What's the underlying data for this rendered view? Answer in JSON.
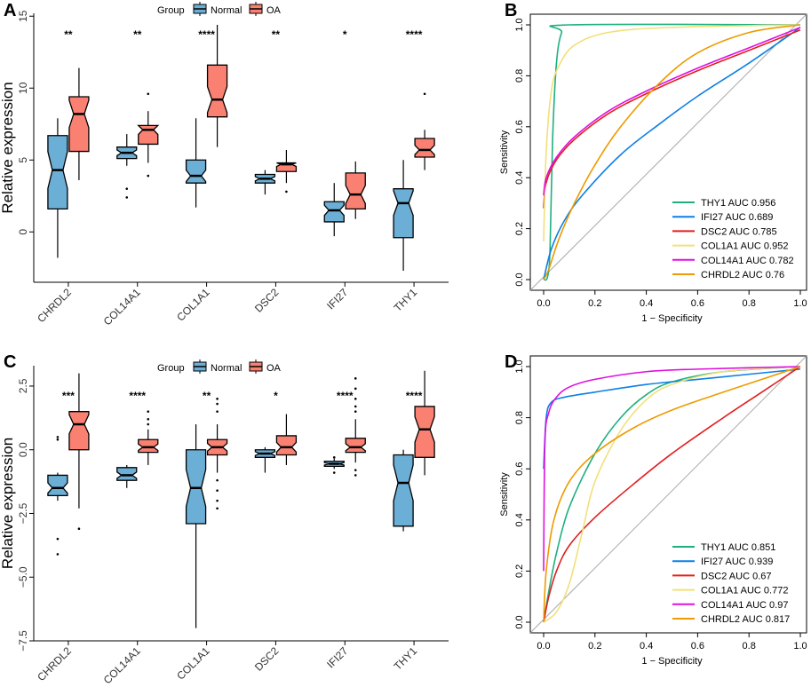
{
  "chart_data": [
    {
      "id": "A",
      "type": "box",
      "panel_label": "A",
      "ylabel": "Relative expression",
      "ylim": [
        -3.5,
        15.2
      ],
      "yticks": [
        0,
        5,
        10,
        15
      ],
      "legend": {
        "title": "Group",
        "entries": [
          "Normal",
          "OA"
        ]
      },
      "categories": [
        "CHRDL2",
        "COL14A1",
        "COL1A1",
        "DSC2",
        "IFI27",
        "THY1"
      ],
      "significance": [
        "**",
        "**",
        "****",
        "**",
        "*",
        "****"
      ],
      "colors": {
        "Normal": "#6BAED6",
        "OA": "#FA8072"
      },
      "series": [
        {
          "name": "Normal",
          "boxes": [
            {
              "min": -1.8,
              "q1": 1.6,
              "median": 4.3,
              "q3": 6.7,
              "max": 7.9,
              "outliers": []
            },
            {
              "min": 4.6,
              "q1": 5.1,
              "median": 5.5,
              "q3": 5.9,
              "max": 6.8,
              "outliers": [
                3.0,
                2.4
              ]
            },
            {
              "min": 1.7,
              "q1": 3.4,
              "median": 3.9,
              "q3": 5.0,
              "max": 7.9,
              "outliers": []
            },
            {
              "min": 2.6,
              "q1": 3.4,
              "median": 3.7,
              "q3": 4.0,
              "max": 4.3,
              "outliers": []
            },
            {
              "min": -0.3,
              "q1": 0.7,
              "median": 1.5,
              "q3": 2.1,
              "max": 3.4,
              "outliers": []
            },
            {
              "min": -2.7,
              "q1": -0.4,
              "median": 2.0,
              "q3": 3.0,
              "max": 5.0,
              "outliers": []
            }
          ]
        },
        {
          "name": "OA",
          "boxes": [
            {
              "min": 3.6,
              "q1": 5.6,
              "median": 8.2,
              "q3": 9.4,
              "max": 11.4,
              "outliers": []
            },
            {
              "min": 4.8,
              "q1": 6.1,
              "median": 7.1,
              "q3": 7.4,
              "max": 8.4,
              "outliers": [
                9.6,
                3.9
              ]
            },
            {
              "min": 5.9,
              "q1": 8.0,
              "median": 9.2,
              "q3": 11.6,
              "max": 14.4,
              "outliers": []
            },
            {
              "min": 3.4,
              "q1": 4.2,
              "median": 4.7,
              "q3": 4.8,
              "max": 5.7,
              "outliers": [
                2.8
              ]
            },
            {
              "min": 0.9,
              "q1": 1.6,
              "median": 2.6,
              "q3": 4.1,
              "max": 4.9,
              "outliers": []
            },
            {
              "min": 4.3,
              "q1": 5.2,
              "median": 5.7,
              "q3": 6.5,
              "max": 7.1,
              "outliers": [
                9.6
              ]
            }
          ]
        }
      ]
    },
    {
      "id": "B",
      "type": "line",
      "panel_label": "B",
      "xlabel": "1 − Specificity",
      "ylabel": "Sensitivity",
      "xlim": [
        0,
        1
      ],
      "ylim": [
        0,
        1
      ],
      "xticks": [
        "0.0",
        "0.2",
        "0.4",
        "0.6",
        "0.8",
        "1.0"
      ],
      "yticks": [
        "0.0",
        "0.2",
        "0.4",
        "0.6",
        "0.8",
        "1.0"
      ],
      "series": [
        {
          "name": "THY1 AUC 0.956",
          "color": "#1DB07F",
          "points": [
            [
              0,
              0
            ],
            [
              0.015,
              0.01
            ],
            [
              0.025,
              0.12
            ],
            [
              0.035,
              0.55
            ],
            [
              0.05,
              0.85
            ],
            [
              0.07,
              0.97
            ],
            [
              0.1,
              1.0
            ],
            [
              1,
              1
            ]
          ]
        },
        {
          "name": "IFI27 AUC 0.689",
          "color": "#0D7FE6",
          "points": [
            [
              0,
              0
            ],
            [
              0.03,
              0.12
            ],
            [
              0.08,
              0.23
            ],
            [
              0.15,
              0.33
            ],
            [
              0.3,
              0.49
            ],
            [
              0.45,
              0.61
            ],
            [
              0.6,
              0.72
            ],
            [
              0.8,
              0.85
            ],
            [
              1,
              0.99
            ]
          ]
        },
        {
          "name": "DSC2 AUC 0.785",
          "color": "#E01F1F",
          "points": [
            [
              0,
              0.28
            ],
            [
              0.01,
              0.38
            ],
            [
              0.05,
              0.47
            ],
            [
              0.12,
              0.55
            ],
            [
              0.25,
              0.65
            ],
            [
              0.4,
              0.73
            ],
            [
              0.6,
              0.82
            ],
            [
              0.8,
              0.9
            ],
            [
              1,
              0.98
            ]
          ]
        },
        {
          "name": "COL1A1 AUC 0.952",
          "color": "#F2E07A",
          "points": [
            [
              0,
              0.15
            ],
            [
              0.01,
              0.5
            ],
            [
              0.03,
              0.74
            ],
            [
              0.06,
              0.84
            ],
            [
              0.12,
              0.92
            ],
            [
              0.25,
              0.97
            ],
            [
              0.5,
              0.99
            ],
            [
              1,
              1
            ]
          ]
        },
        {
          "name": "COL14A1 AUC 0.782",
          "color": "#E010E0",
          "points": [
            [
              0,
              0.33
            ],
            [
              0.01,
              0.4
            ],
            [
              0.05,
              0.48
            ],
            [
              0.12,
              0.56
            ],
            [
              0.25,
              0.66
            ],
            [
              0.4,
              0.74
            ],
            [
              0.6,
              0.83
            ],
            [
              0.8,
              0.91
            ],
            [
              1,
              0.99
            ]
          ]
        },
        {
          "name": "CHRDL2 AUC 0.76",
          "color": "#EE9A00",
          "points": [
            [
              0,
              0
            ],
            [
              0.02,
              0.04
            ],
            [
              0.06,
              0.16
            ],
            [
              0.12,
              0.3
            ],
            [
              0.2,
              0.45
            ],
            [
              0.3,
              0.6
            ],
            [
              0.45,
              0.77
            ],
            [
              0.6,
              0.89
            ],
            [
              0.8,
              0.97
            ],
            [
              1,
              1
            ]
          ]
        }
      ]
    },
    {
      "id": "C",
      "type": "box",
      "panel_label": "C",
      "ylabel": "Relative expression",
      "ylim": [
        -7.5,
        3.3
      ],
      "yticks": [
        2.5,
        0.0,
        -2.5,
        -5.0,
        -7.5
      ],
      "ytick_labels": [
        "2.5",
        "0.0",
        "−2.5",
        "−5.0",
        "−7.5"
      ],
      "legend": {
        "title": "Group",
        "entries": [
          "Normal",
          "OA"
        ]
      },
      "categories": [
        "CHRDL2",
        "COL14A1",
        "COL1A1",
        "DSC2",
        "IFI27",
        "THY1"
      ],
      "significance": [
        "***",
        "****",
        "**",
        "*",
        "****",
        "****"
      ],
      "colors": {
        "Normal": "#6BAED6",
        "OA": "#FA8072"
      },
      "series": [
        {
          "name": "Normal",
          "boxes": [
            {
              "min": -2.0,
              "q1": -1.8,
              "median": -1.5,
              "q3": -1.0,
              "max": -0.9,
              "outliers": [
                0.5,
                0.4,
                -3.5,
                -4.1
              ]
            },
            {
              "min": -1.5,
              "q1": -1.2,
              "median": -1.0,
              "q3": -0.7,
              "max": -0.6,
              "outliers": []
            },
            {
              "min": -7.0,
              "q1": -2.9,
              "median": -1.5,
              "q3": 0.0,
              "max": 1.0,
              "outliers": []
            },
            {
              "min": -0.9,
              "q1": -0.3,
              "median": -0.15,
              "q3": 0.0,
              "max": 0.1,
              "outliers": []
            },
            {
              "min": -0.75,
              "q1": -0.65,
              "median": -0.55,
              "q3": -0.45,
              "max": -0.35,
              "outliers": [
                -0.9,
                -0.3
              ]
            },
            {
              "min": -3.2,
              "q1": -3.0,
              "median": -1.3,
              "q3": -0.2,
              "max": 0.0,
              "outliers": []
            }
          ]
        },
        {
          "name": "OA",
          "boxes": [
            {
              "min": -2.3,
              "q1": 0.0,
              "median": 1.0,
              "q3": 1.5,
              "max": 3.0,
              "outliers": [
                -3.1
              ]
            },
            {
              "min": -0.6,
              "q1": -0.1,
              "median": 0.1,
              "q3": 0.4,
              "max": 0.8,
              "outliers": [
                1.5,
                1.2,
                1.0
              ]
            },
            {
              "min": -0.9,
              "q1": -0.2,
              "median": 0.1,
              "q3": 0.4,
              "max": 1.0,
              "outliers": [
                2.0,
                1.8,
                1.5,
                -1.2,
                -1.6,
                -2.0,
                -2.3
              ]
            },
            {
              "min": -0.6,
              "q1": -0.2,
              "median": 0.1,
              "q3": 0.55,
              "max": 1.4,
              "outliers": []
            },
            {
              "min": -0.5,
              "q1": -0.1,
              "median": 0.1,
              "q3": 0.45,
              "max": 1.2,
              "outliers": [
                2.8,
                2.4,
                2.0,
                1.7,
                1.5,
                -0.8,
                -1.0
              ]
            },
            {
              "min": -1.0,
              "q1": -0.3,
              "median": 0.8,
              "q3": 1.7,
              "max": 3.1,
              "outliers": []
            }
          ]
        }
      ]
    },
    {
      "id": "D",
      "type": "line",
      "panel_label": "D",
      "xlabel": "1 − Specificity",
      "ylabel": "Sensitivity",
      "xlim": [
        0,
        1
      ],
      "ylim": [
        0,
        1
      ],
      "xticks": [
        "0.0",
        "0.2",
        "0.4",
        "0.6",
        "0.8",
        "1.0"
      ],
      "yticks": [
        "0.0",
        "0.2",
        "0.4",
        "0.6",
        "0.8",
        "1.0"
      ],
      "series": [
        {
          "name": "THY1 AUC 0.851",
          "color": "#1DB07F",
          "points": [
            [
              0,
              0
            ],
            [
              0.02,
              0.12
            ],
            [
              0.05,
              0.27
            ],
            [
              0.1,
              0.45
            ],
            [
              0.2,
              0.66
            ],
            [
              0.3,
              0.8
            ],
            [
              0.4,
              0.89
            ],
            [
              0.5,
              0.94
            ],
            [
              0.7,
              0.98
            ],
            [
              1,
              1
            ]
          ]
        },
        {
          "name": "IFI27 AUC 0.939",
          "color": "#0D7FE6",
          "points": [
            [
              0,
              0.6
            ],
            [
              0.01,
              0.8
            ],
            [
              0.03,
              0.86
            ],
            [
              0.08,
              0.88
            ],
            [
              0.2,
              0.9
            ],
            [
              0.4,
              0.93
            ],
            [
              0.6,
              0.95
            ],
            [
              0.8,
              0.97
            ],
            [
              1,
              0.99
            ]
          ]
        },
        {
          "name": "DSC2 AUC 0.67",
          "color": "#E01F1F",
          "points": [
            [
              0,
              0
            ],
            [
              0.02,
              0.1
            ],
            [
              0.05,
              0.2
            ],
            [
              0.1,
              0.3
            ],
            [
              0.2,
              0.41
            ],
            [
              0.35,
              0.54
            ],
            [
              0.5,
              0.66
            ],
            [
              0.7,
              0.8
            ],
            [
              0.85,
              0.9
            ],
            [
              1,
              1
            ]
          ]
        },
        {
          "name": "COL1A1 AUC 0.772",
          "color": "#F2E07A",
          "points": [
            [
              0,
              0
            ],
            [
              0.05,
              0.04
            ],
            [
              0.1,
              0.15
            ],
            [
              0.15,
              0.35
            ],
            [
              0.2,
              0.55
            ],
            [
              0.3,
              0.75
            ],
            [
              0.4,
              0.87
            ],
            [
              0.5,
              0.93
            ],
            [
              0.7,
              0.98
            ],
            [
              1,
              1
            ]
          ]
        },
        {
          "name": "COL14A1 AUC 0.97",
          "color": "#E010E0",
          "points": [
            [
              0,
              0.2
            ],
            [
              0.005,
              0.7
            ],
            [
              0.02,
              0.82
            ],
            [
              0.05,
              0.88
            ],
            [
              0.1,
              0.92
            ],
            [
              0.2,
              0.95
            ],
            [
              0.4,
              0.98
            ],
            [
              0.6,
              0.99
            ],
            [
              1,
              1
            ]
          ]
        },
        {
          "name": "CHRDL2 AUC 0.817",
          "color": "#EE9A00",
          "points": [
            [
              0,
              0
            ],
            [
              0.01,
              0.2
            ],
            [
              0.04,
              0.4
            ],
            [
              0.1,
              0.55
            ],
            [
              0.2,
              0.66
            ],
            [
              0.35,
              0.76
            ],
            [
              0.5,
              0.83
            ],
            [
              0.7,
              0.9
            ],
            [
              0.85,
              0.95
            ],
            [
              1,
              1
            ]
          ]
        }
      ]
    }
  ]
}
